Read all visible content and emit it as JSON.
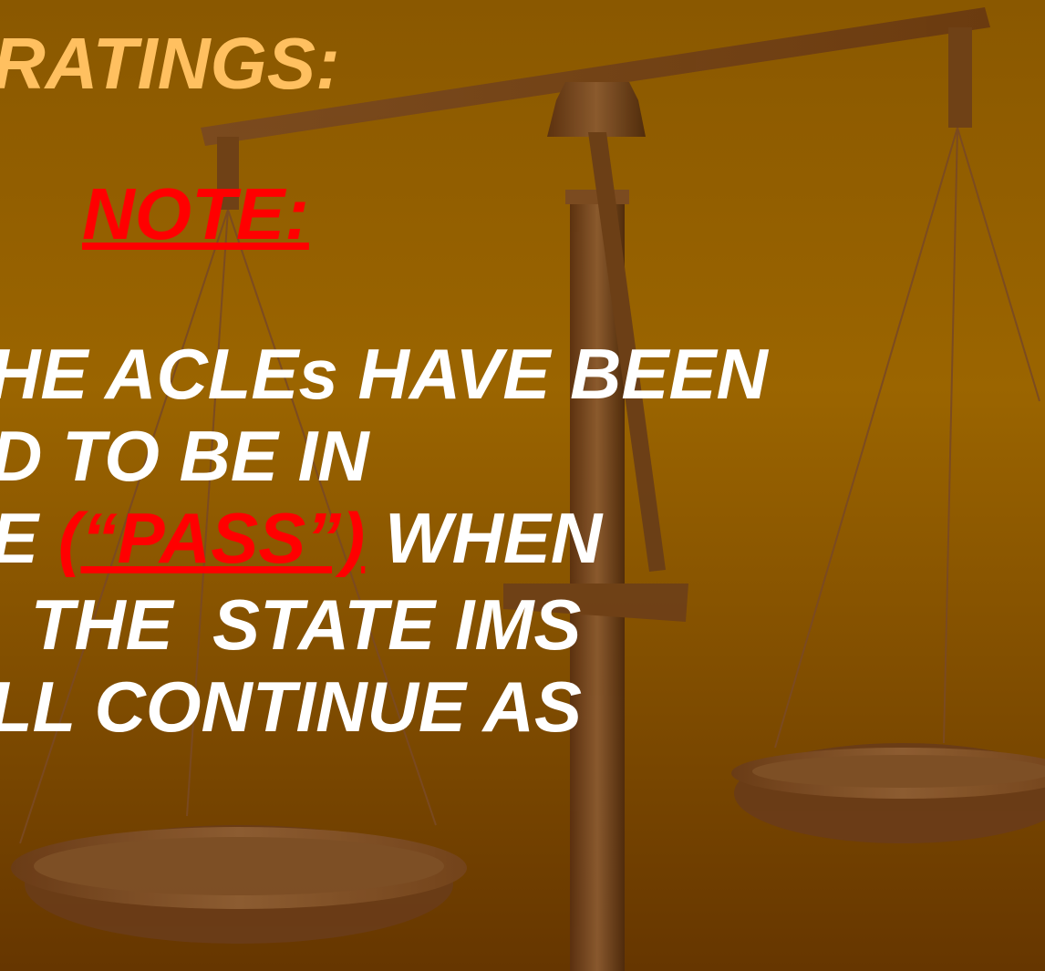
{
  "title": "RATINGS:",
  "note": "NOTE:",
  "body": {
    "lines": [
      "HE ACLEs HAVE BEEN",
      "D TO BE IN",
      {
        "before": "E ",
        "highlight": "(“PASS”)",
        "after": " WHEN"
      },
      " THE  STATE IMS",
      "LL CONTINUE AS"
    ]
  }
}
